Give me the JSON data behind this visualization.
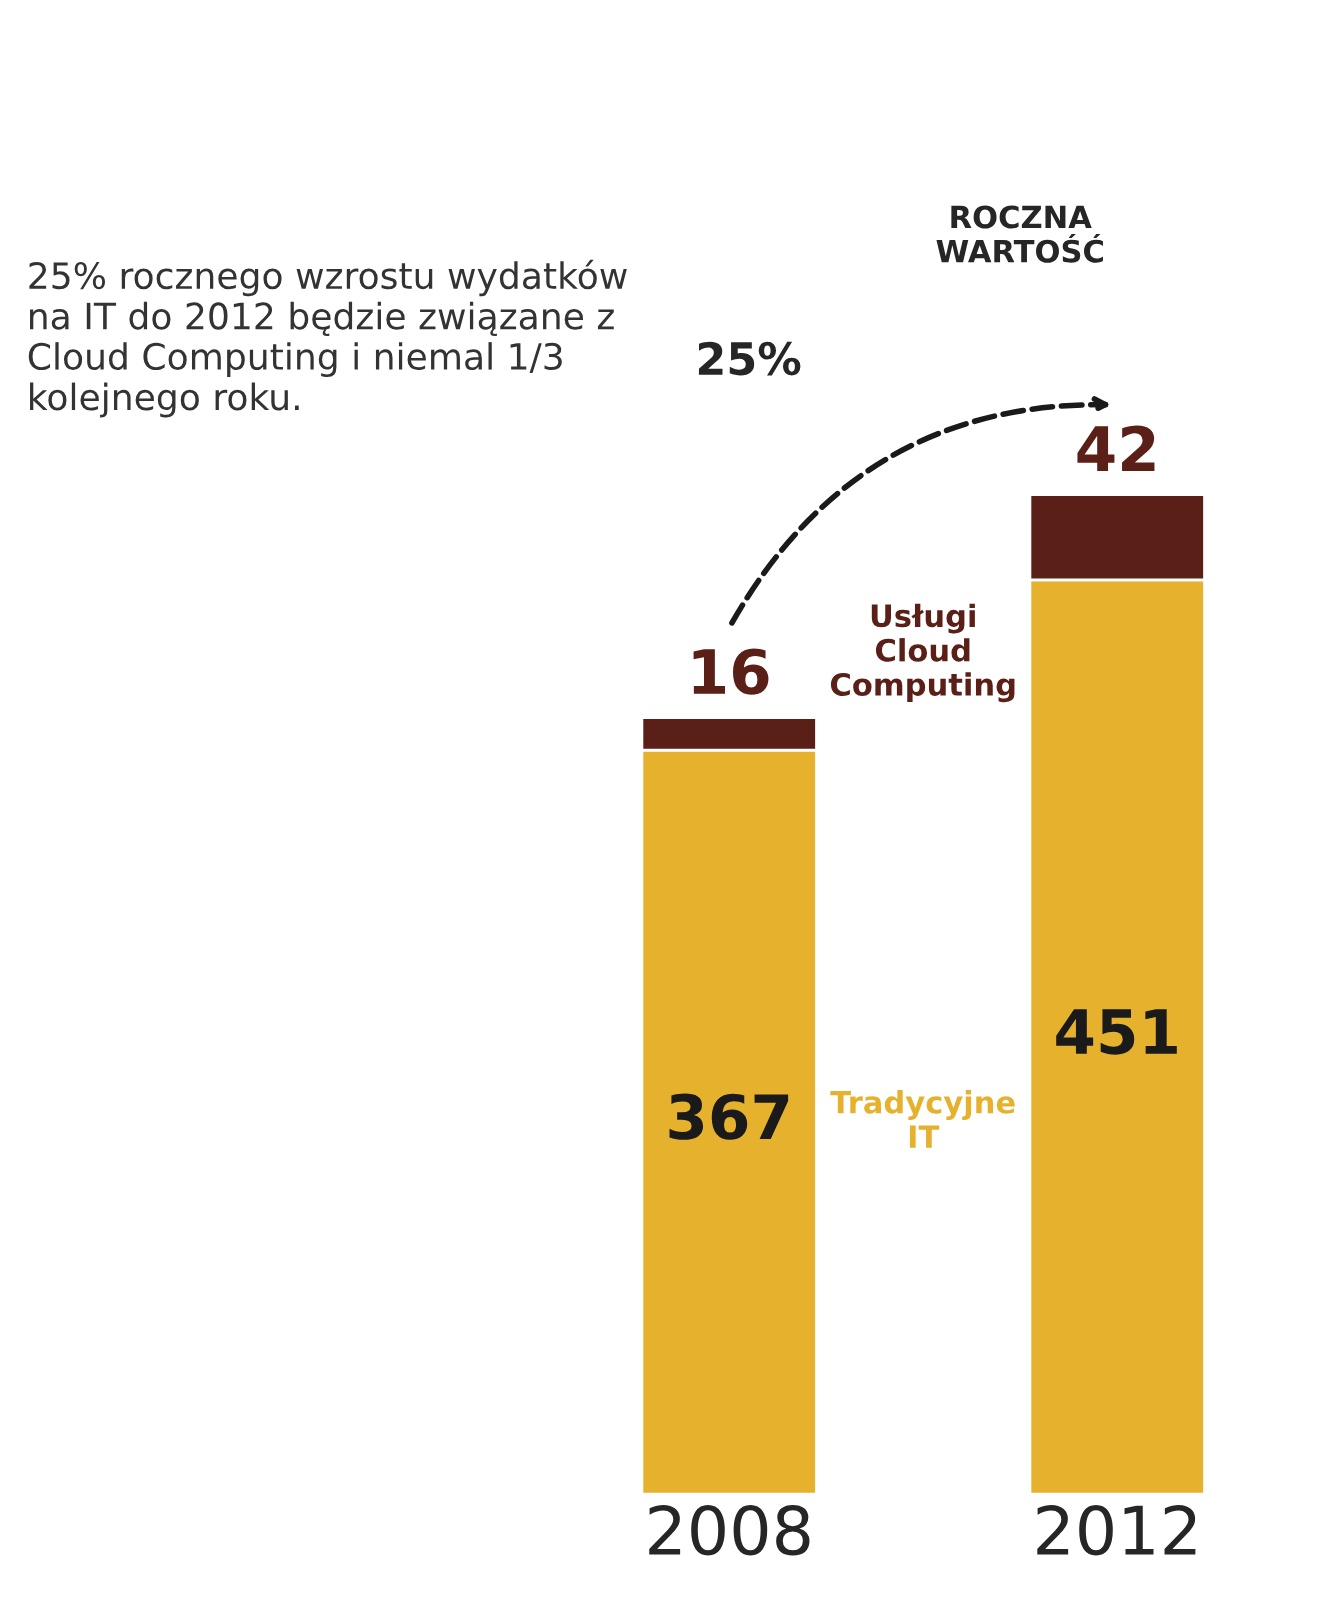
{
  "chart_data": {
    "type": "bar",
    "stacked": true,
    "categories": [
      "2008",
      "2012"
    ],
    "series": [
      {
        "name": "Tradycyjne IT",
        "color": "#e6b22e",
        "values": [
          367,
          451
        ]
      },
      {
        "name": "Usługi Cloud Computing",
        "color": "#5a1f16",
        "values": [
          16,
          42
        ]
      }
    ],
    "data_labels": true,
    "tick_labels": "x",
    "legend": false,
    "grid": false,
    "annotations": [
      "25% rocznego wzrostu wydatków na IT do 2012 będzie związane z Cloud Computing i niemal 1/3 kolejnego roku.",
      "ROCZNA WARTOŚĆ",
      "25%"
    ]
  }
}
